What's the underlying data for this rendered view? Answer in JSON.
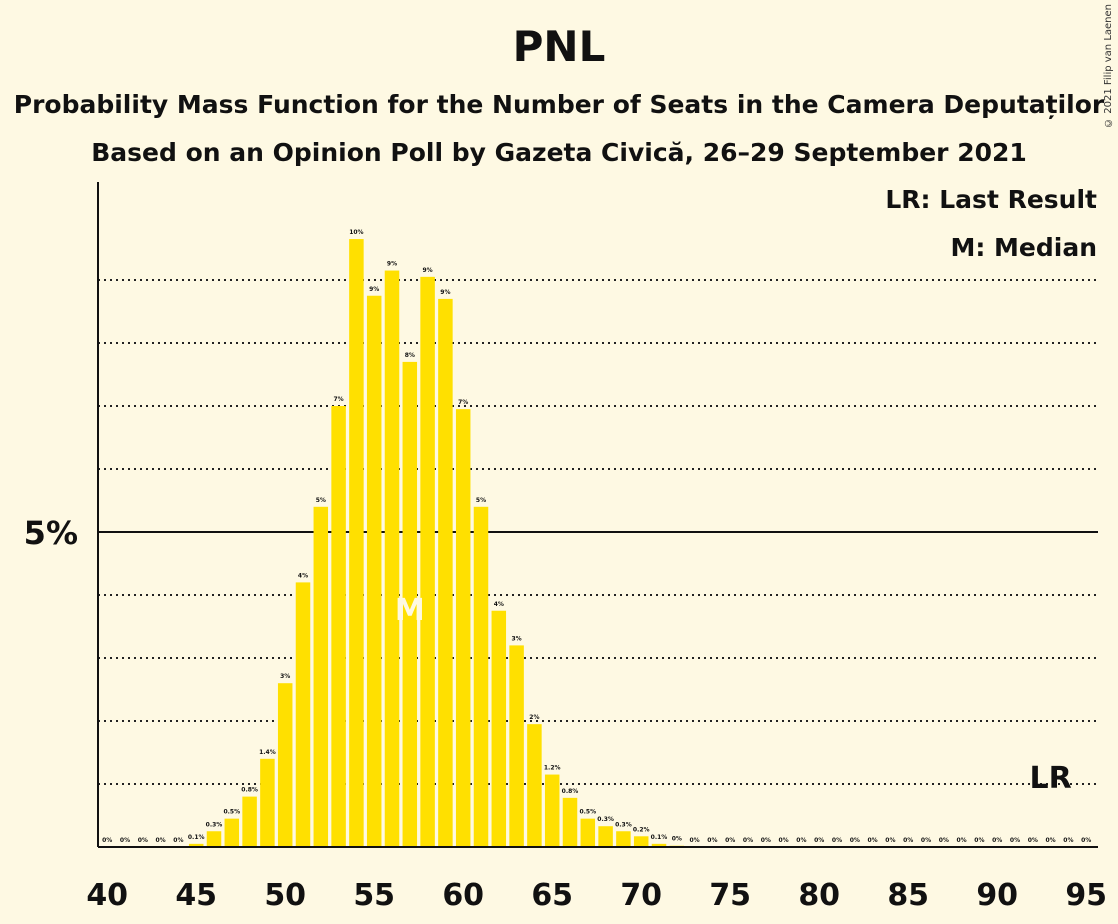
{
  "title": "PNL",
  "subtitle1": "Probability Mass Function for the Number of Seats in the Camera Deputaților",
  "subtitle2": "Based on an Opinion Poll by Gazeta Civică, 26–29 September 2021",
  "copyright": "© 2021 Filip van Laenen",
  "legend": {
    "lr": "LR: Last Result",
    "m": "M: Median"
  },
  "markers": {
    "median_label": "M",
    "median_seat": 57,
    "lr_label": "LR",
    "lr_seat": 93
  },
  "colors": {
    "bar": "#ffe000",
    "background": "#fef9e3"
  },
  "chart_data": {
    "type": "bar",
    "title": "PNL",
    "xlabel": "",
    "ylabel": "",
    "ylim": [
      0,
      10.5
    ],
    "x_ticks": [
      40,
      45,
      50,
      55,
      60,
      65,
      70,
      75,
      80,
      85,
      90,
      95
    ],
    "y_ticks_labeled": [
      {
        "value": 5,
        "label": "5%"
      }
    ],
    "gridlines": [
      1,
      2,
      3,
      4,
      6,
      7,
      8,
      9
    ],
    "legend_position": "top-right",
    "categories": [
      40,
      41,
      42,
      43,
      44,
      45,
      46,
      47,
      48,
      49,
      50,
      51,
      52,
      53,
      54,
      55,
      56,
      57,
      58,
      59,
      60,
      61,
      62,
      63,
      64,
      65,
      66,
      67,
      68,
      69,
      70,
      71,
      72,
      73,
      74,
      75,
      76,
      77,
      78,
      79,
      80,
      81,
      82,
      83,
      84,
      85,
      86,
      87,
      88,
      89,
      90,
      91,
      92,
      93,
      94,
      95
    ],
    "values": [
      0,
      0,
      0,
      0,
      0,
      0.05,
      0.25,
      0.45,
      0.8,
      1.4,
      2.6,
      4.2,
      5.4,
      7.0,
      9.65,
      8.75,
      9.15,
      7.7,
      9.05,
      8.7,
      6.95,
      5.4,
      3.75,
      3.2,
      1.95,
      1.15,
      0.78,
      0.45,
      0.33,
      0.25,
      0.17,
      0.05,
      0.02,
      0,
      0,
      0,
      0,
      0,
      0,
      0,
      0,
      0,
      0,
      0,
      0,
      0,
      0,
      0,
      0,
      0,
      0,
      0,
      0,
      0,
      0,
      0
    ],
    "labels": [
      "0%",
      "0%",
      "0%",
      "0%",
      "0%",
      "0.1%",
      "0.3%",
      "0.5%",
      "0.8%",
      "1.4%",
      "3%",
      "4%",
      "5%",
      "7%",
      "10%",
      "9%",
      "9%",
      "8%",
      "9%",
      "9%",
      "7%",
      "5%",
      "4%",
      "3%",
      "2%",
      "1.2%",
      "0.8%",
      "0.5%",
      "0.3%",
      "0.3%",
      "0.2%",
      "0.1%",
      "0%",
      "0%",
      "0%",
      "0%",
      "0%",
      "0%",
      "0%",
      "0%",
      "0%",
      "0%",
      "0%",
      "0%",
      "0%",
      "0%",
      "0%",
      "0%",
      "0%",
      "0%",
      "0%",
      "0%",
      "0%",
      "0%",
      "0%",
      "0%"
    ]
  }
}
